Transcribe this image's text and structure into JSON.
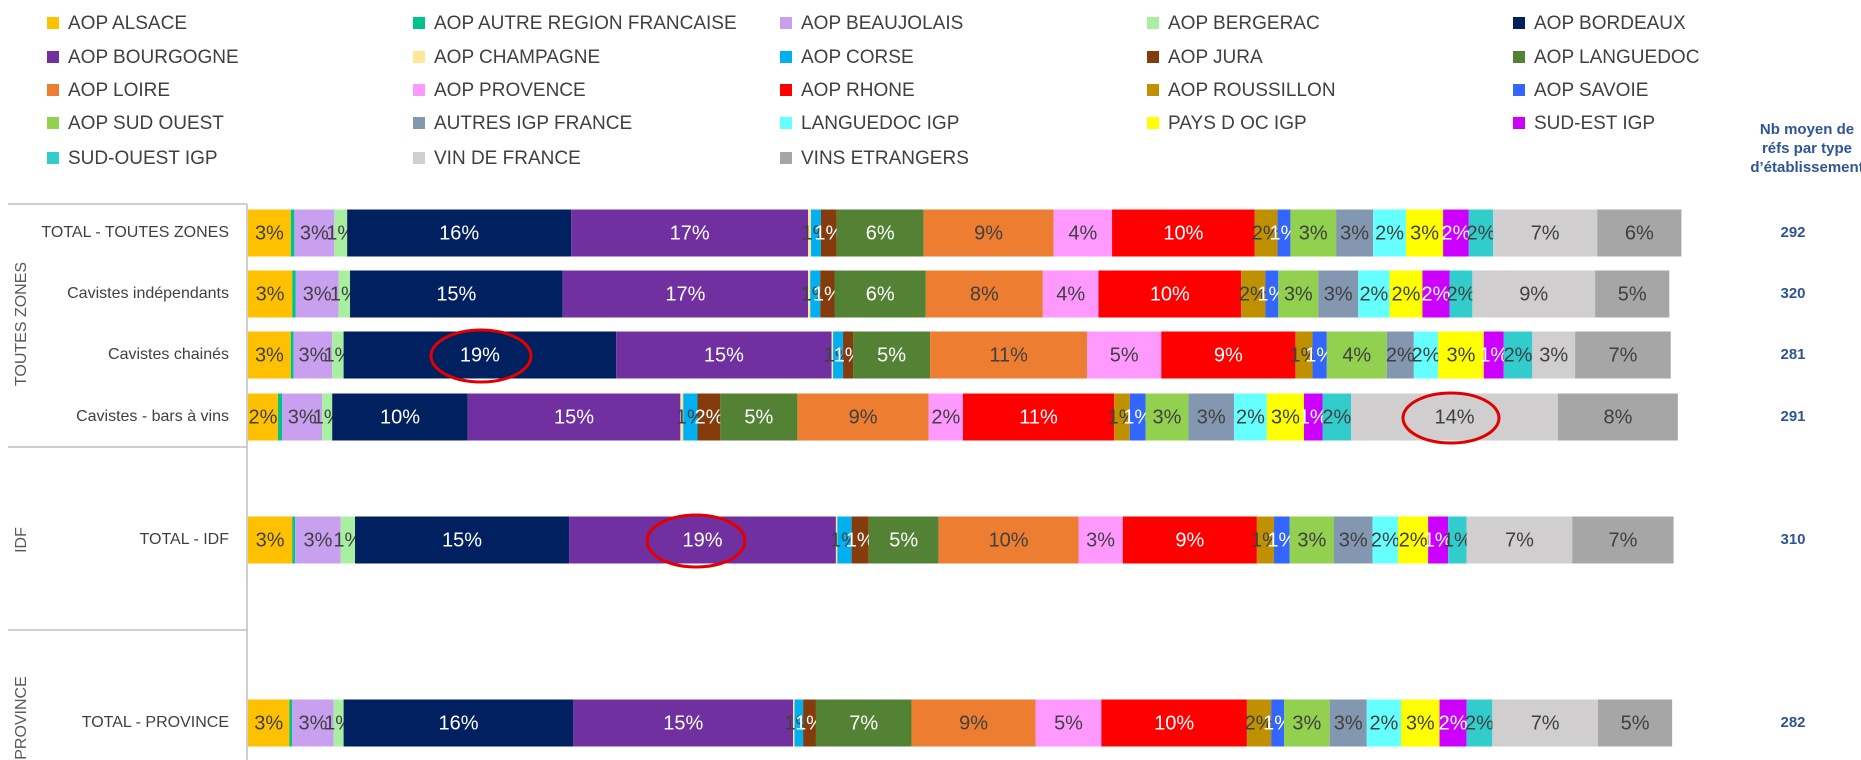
{
  "chart_data": {
    "type": "bar",
    "orientation": "horizontal",
    "stacked": true,
    "xlim": [
      0,
      100
    ],
    "groups": [
      {
        "name": "TOUTES ZONES",
        "categories": [
          "TOTAL - TOUTES ZONES",
          "Cavistes indépendants",
          "Cavistes chainés",
          "Cavistes - bars à vins"
        ]
      },
      {
        "name": "IDF",
        "categories": [
          "TOTAL - IDF"
        ]
      },
      {
        "name": "PROVINCE",
        "categories": [
          "TOTAL - PROVINCE"
        ]
      }
    ],
    "series": [
      {
        "name": "AOP ALSACE",
        "color": "#FFC000",
        "values": [
          3.0,
          3.1,
          3.0,
          2.1,
          3.1,
          2.9
        ],
        "value_labels": [
          "3%",
          "3%",
          "3%",
          "2%",
          "3%",
          "3%"
        ]
      },
      {
        "name": "AOP AUTRE REGION FRANCAISE",
        "color": "#00C389",
        "values": [
          0.25,
          0.25,
          0.2,
          0.3,
          0.2,
          0.2
        ],
        "value_labels": [
          null,
          null,
          null,
          null,
          null,
          null
        ]
      },
      {
        "name": "AOP BEAUJOLAIS",
        "color": "#C9A0F0",
        "values": [
          2.8,
          3.0,
          2.7,
          2.8,
          3.2,
          2.9
        ],
        "value_labels": [
          "3%",
          "3%",
          "3%",
          "3%",
          "3%",
          "3%"
        ]
      },
      {
        "name": "AOP BERGERAC",
        "color": "#A8F0A0",
        "values": [
          0.9,
          0.8,
          0.8,
          0.7,
          1.0,
          0.7
        ],
        "value_labels": [
          "1%",
          "1%",
          "1%",
          "1%",
          "1%",
          "1%"
        ]
      },
      {
        "name": "AOP BORDEAUX",
        "color": "#002060",
        "values": [
          15.7,
          14.9,
          19.1,
          9.5,
          15.0,
          16.1
        ],
        "value_labels": [
          "16%",
          "15%",
          "19%",
          "10%",
          "15%",
          "16%"
        ]
      },
      {
        "name": "AOP BOURGOGNE",
        "color": "#7030A0",
        "values": [
          16.6,
          17.2,
          15.1,
          14.9,
          18.7,
          15.4
        ],
        "value_labels": [
          "17%",
          "17%",
          "15%",
          "15%",
          "19%",
          "15%"
        ]
      },
      {
        "name": "AOP CHAMPAGNE",
        "color": "#FFE699",
        "values": [
          0.2,
          0.15,
          0.1,
          0.2,
          0.1,
          0.1
        ],
        "value_labels": [
          null,
          null,
          null,
          null,
          null,
          null
        ]
      },
      {
        "name": "AOP CORSE",
        "color": "#00B0F0",
        "values": [
          0.7,
          0.7,
          0.7,
          1.0,
          1.0,
          0.6
        ],
        "value_labels": [
          "1%",
          "1%",
          "1%",
          "1%",
          "1%",
          "1%"
        ]
      },
      {
        "name": "AOP JURA",
        "color": "#843C0C",
        "values": [
          1.1,
          1.0,
          0.7,
          1.6,
          1.2,
          0.9
        ],
        "value_labels": [
          "1%",
          "1%",
          "1%",
          "2%",
          "1%",
          "1%"
        ]
      },
      {
        "name": "AOP LANGUEDOC",
        "color": "#548235",
        "values": [
          6.1,
          6.4,
          5.4,
          5.4,
          4.9,
          6.7
        ],
        "value_labels": [
          "6%",
          "6%",
          "5%",
          "5%",
          "5%",
          "7%"
        ]
      },
      {
        "name": "AOP LOIRE",
        "color": "#ED7D31",
        "values": [
          9.1,
          8.2,
          11.0,
          9.2,
          9.8,
          8.7
        ],
        "value_labels": [
          "9%",
          "8%",
          "11%",
          "9%",
          "10%",
          "9%"
        ]
      },
      {
        "name": "AOP PROVENCE",
        "color": "#FF99FF",
        "values": [
          4.1,
          3.9,
          5.2,
          2.4,
          3.1,
          4.6
        ],
        "value_labels": [
          "4%",
          "4%",
          "5%",
          "2%",
          "3%",
          "5%"
        ]
      },
      {
        "name": "AOP RHONE",
        "color": "#FF0000",
        "values": [
          10.0,
          10.0,
          9.4,
          10.6,
          9.4,
          10.2
        ],
        "value_labels": [
          "10%",
          "10%",
          "9%",
          "11%",
          "9%",
          "10%"
        ]
      },
      {
        "name": "AOP ROUSSILLON",
        "color": "#BF9000",
        "values": [
          1.6,
          1.7,
          1.2,
          1.1,
          1.2,
          1.7
        ],
        "value_labels": [
          "2%",
          "2%",
          "1%",
          "1%",
          "1%",
          "2%"
        ]
      },
      {
        "name": "AOP SAVOIE",
        "color": "#3366FF",
        "values": [
          0.9,
          0.9,
          1.0,
          1.1,
          1.1,
          0.9
        ],
        "value_labels": [
          "1%",
          "1%",
          "1%",
          "1%",
          "1%",
          "1%"
        ]
      },
      {
        "name": "AOP SUD OUEST",
        "color": "#92D050",
        "values": [
          3.2,
          2.8,
          4.2,
          3.0,
          3.1,
          3.2
        ],
        "value_labels": [
          "3%",
          "3%",
          "4%",
          "3%",
          "3%",
          "3%"
        ]
      },
      {
        "name": "AUTRES IGP FRANCE",
        "color": "#8497B0",
        "values": [
          2.6,
          2.8,
          1.9,
          3.2,
          2.7,
          2.6
        ],
        "value_labels": [
          "3%",
          "3%",
          "2%",
          "3%",
          "3%",
          "3%"
        ]
      },
      {
        "name": "LANGUEDOC IGP",
        "color": "#66FFFF",
        "values": [
          2.3,
          2.2,
          1.7,
          2.3,
          1.8,
          2.4
        ],
        "value_labels": [
          "2%",
          "2%",
          "2%",
          "2%",
          "2%",
          "2%"
        ]
      },
      {
        "name": "PAYS D OC IGP",
        "color": "#FFFF00",
        "values": [
          2.6,
          2.3,
          3.2,
          2.6,
          2.1,
          2.7
        ],
        "value_labels": [
          "3%",
          "2%",
          "3%",
          "3%",
          "2%",
          "3%"
        ]
      },
      {
        "name": "SUD-EST IGP",
        "color": "#CC00FF",
        "values": [
          1.8,
          1.9,
          1.4,
          1.3,
          1.4,
          1.9
        ],
        "value_labels": [
          "2%",
          "2%",
          "1%",
          "1%",
          "1%",
          "2%"
        ]
      },
      {
        "name": "SUD-OUEST IGP",
        "color": "#33CCCC",
        "values": [
          1.7,
          1.6,
          2.0,
          2.0,
          1.3,
          1.8
        ],
        "value_labels": [
          "2%",
          "2%",
          "2%",
          "2%",
          "1%",
          "2%"
        ]
      },
      {
        "name": "VIN DE FRANCE",
        "color": "#D0CECE",
        "values": [
          7.3,
          8.6,
          3.0,
          14.5,
          7.4,
          7.4
        ],
        "value_labels": [
          "7%",
          "9%",
          "3%",
          "14%",
          "7%",
          "7%"
        ]
      },
      {
        "name": "VINS ETRANGERS",
        "color": "#A6A6A6",
        "values": [
          5.9,
          5.2,
          6.7,
          8.4,
          7.1,
          5.2
        ],
        "value_labels": [
          "6%",
          "5%",
          "7%",
          "8%",
          "7%",
          "5%"
        ]
      }
    ],
    "side_column": {
      "title_lines": [
        "Nb moyen de",
        "réfs par type",
        "d’établissement"
      ],
      "values": [
        292,
        320,
        281,
        291,
        310,
        282
      ]
    }
  }
}
